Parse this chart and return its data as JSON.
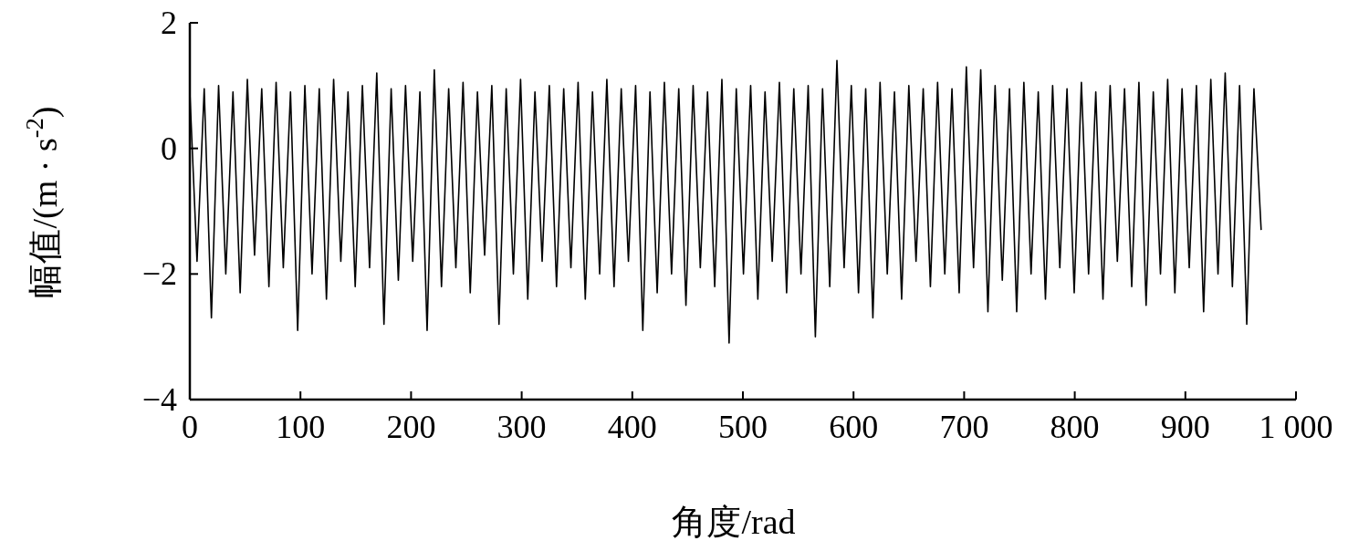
{
  "chart_data": {
    "type": "line",
    "xlabel": "角度/rad",
    "ylabel": "幅值/(m · s$^{-2}$)",
    "xlim": [
      0,
      1000
    ],
    "ylim": [
      -4,
      2
    ],
    "xticks": [
      0,
      100,
      200,
      300,
      400,
      500,
      600,
      700,
      800,
      900,
      {
        "value": 1000,
        "label": "1 000"
      }
    ],
    "yticks": [
      {
        "value": -4,
        "label": "−4"
      },
      {
        "value": -2,
        "label": "−2"
      },
      0,
      2
    ],
    "grid": false,
    "marker": "none",
    "line_style": "solid",
    "x": [
      0,
      6.5,
      13,
      19.5,
      26,
      32.5,
      39,
      45.5,
      52,
      58.5,
      65,
      71.5,
      78,
      84.5,
      91,
      97.5,
      104,
      110.5,
      117,
      123.5,
      130,
      136.5,
      143,
      149.5,
      156,
      162.5,
      169,
      175.5,
      182,
      188.5,
      195,
      201.5,
      208,
      214.5,
      221,
      227.5,
      234,
      240.5,
      247,
      253.5,
      260,
      266.5,
      273,
      279.5,
      286,
      292.5,
      299,
      305.5,
      312,
      318.5,
      325,
      331.5,
      338,
      344.5,
      351,
      357.5,
      364,
      370.5,
      377,
      383.5,
      390,
      396.5,
      403,
      409.5,
      416,
      422.5,
      429,
      435.5,
      442,
      448.5,
      455,
      461.5,
      468,
      474.5,
      481,
      487.5,
      494,
      500.5,
      507,
      513.5,
      520,
      526.5,
      533,
      539.5,
      546,
      552.5,
      559,
      565.5,
      572,
      578.5,
      585,
      591.5,
      598,
      604.5,
      611,
      617.5,
      624,
      630.5,
      637,
      643.5,
      650,
      656.5,
      663,
      669.5,
      676,
      682.5,
      689,
      695.5,
      702,
      708.5,
      715,
      721.5,
      728,
      734.5,
      741,
      747.5,
      754,
      760.5,
      767,
      773.5,
      780,
      786.5,
      793,
      799.5,
      806,
      812.5,
      819,
      825.5,
      832,
      838.5,
      845,
      851.5,
      858,
      864.5,
      871,
      877.5,
      884,
      890.5,
      897,
      903.5,
      910,
      916.5,
      923,
      929.5,
      936,
      942.5,
      949,
      955.5,
      962,
      968.5
    ],
    "series": [
      {
        "color": "#000000",
        "values": [
          0.9,
          -1.8,
          0.95,
          -2.7,
          1.0,
          -2.0,
          0.9,
          -2.3,
          1.1,
          -1.7,
          0.95,
          -2.2,
          1.05,
          -1.9,
          0.9,
          -2.9,
          1.0,
          -2.0,
          0.95,
          -2.4,
          1.1,
          -1.8,
          0.9,
          -2.2,
          1.0,
          -1.9,
          1.2,
          -2.8,
          0.95,
          -2.1,
          1.0,
          -1.8,
          0.9,
          -2.9,
          1.25,
          -2.2,
          0.95,
          -1.9,
          1.05,
          -2.3,
          0.9,
          -1.7,
          1.0,
          -2.8,
          0.95,
          -2.0,
          1.1,
          -2.4,
          0.9,
          -1.8,
          1.0,
          -2.2,
          0.95,
          -1.9,
          1.05,
          -2.4,
          0.9,
          -2.0,
          1.1,
          -2.2,
          0.95,
          -1.8,
          1.0,
          -2.9,
          0.9,
          -2.3,
          1.05,
          -2.0,
          0.95,
          -2.5,
          1.0,
          -1.9,
          0.9,
          -2.2,
          1.1,
          -3.1,
          0.95,
          -2.0,
          1.0,
          -2.4,
          0.9,
          -1.8,
          1.05,
          -2.3,
          0.95,
          -2.0,
          1.0,
          -3.0,
          0.95,
          -2.2,
          1.4,
          -1.9,
          1.0,
          -2.3,
          0.95,
          -2.7,
          1.05,
          -2.0,
          0.9,
          -2.4,
          1.0,
          -1.8,
          0.95,
          -2.2,
          1.05,
          -2.0,
          0.95,
          -2.3,
          1.3,
          -1.9,
          1.25,
          -2.6,
          1.0,
          -2.1,
          0.95,
          -2.6,
          1.05,
          -2.0,
          0.9,
          -2.4,
          1.0,
          -1.9,
          0.95,
          -2.3,
          1.05,
          -2.0,
          0.9,
          -2.4,
          1.0,
          -1.8,
          0.95,
          -2.2,
          1.05,
          -2.5,
          0.9,
          -2.0,
          1.1,
          -2.3,
          0.95,
          -1.9,
          1.0,
          -2.6,
          1.1,
          -2.0,
          1.2,
          -2.2,
          1.0,
          -2.8,
          0.95,
          -1.3
        ]
      }
    ]
  }
}
